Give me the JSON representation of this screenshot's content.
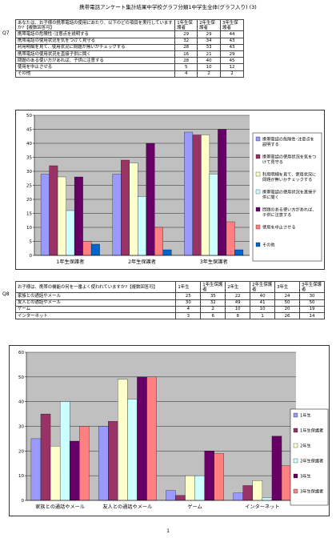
{
  "page": {
    "title": "携帯電話アンケート集計結果中学校グラフ分類1中学生全体(グラフ入り) (3)",
    "page_number": "1"
  },
  "q7": {
    "label": "Q7",
    "question": "あなたは、お子様の携帯電話の使用にあたり、以下のどの項目を実行していますか?【複数回答可】",
    "headers": [
      "1年生保護者",
      "2年生保護者",
      "3年生保護者"
    ],
    "rows": [
      {
        "label": "携帯電話の危険性･注意点を説明する",
        "values": [
          "29",
          "29",
          "44"
        ]
      },
      {
        "label": "携帯電話の使用状況を気をつけて見守る",
        "values": [
          "32",
          "34",
          "43"
        ]
      },
      {
        "label": "利用明細を見て、使用状況に問題が無いかチェックする",
        "values": [
          "28",
          "33",
          "43"
        ]
      },
      {
        "label": "携帯電話の使用状況を直接子供に聞く",
        "values": [
          "16",
          "21",
          "29"
        ]
      },
      {
        "label": "問題のある使い方があれば、子供に注意する",
        "values": [
          "28",
          "40",
          "45"
        ]
      },
      {
        "label": "使用を中止させる",
        "values": [
          "5",
          "10",
          "12"
        ]
      },
      {
        "label": "その他",
        "values": [
          "4",
          "2",
          "2"
        ]
      }
    ]
  },
  "q8": {
    "label": "Q8",
    "question": "お子様は、携帯の機能の何を一番よく使われていますか?【複数回答可】",
    "headers": [
      "1年生",
      "1年生保護者",
      "2年生",
      "2年生保護者",
      "3年生",
      "3年生保護者"
    ],
    "rows": [
      {
        "label": "家族との通話やメール",
        "values": [
          "25",
          "35",
          "22",
          "40",
          "24",
          "30"
        ]
      },
      {
        "label": "友人との通話やメール",
        "values": [
          "30",
          "32",
          "49",
          "41",
          "50",
          "50"
        ]
      },
      {
        "label": "ゲーム",
        "values": [
          "4",
          "2",
          "10",
          "10",
          "20",
          "19"
        ]
      },
      {
        "label": "インターネット",
        "values": [
          "3",
          "6",
          "8",
          "1",
          "26",
          "14"
        ]
      }
    ]
  },
  "colors": [
    "#9999ff",
    "#993366",
    "#ffffcc",
    "#ccffff",
    "#660066",
    "#ff8080",
    "#0066cc"
  ],
  "chart_data": [
    {
      "type": "bar",
      "categories": [
        "1年生保護者",
        "2年生保護者",
        "3年生保護者"
      ],
      "ylim": [
        0,
        50
      ],
      "yticks": [
        0,
        5,
        10,
        15,
        20,
        25,
        30,
        35,
        40,
        45,
        50
      ],
      "grid": true,
      "legend_position": "right",
      "series": [
        {
          "name": "携帯電話の危険性･注意点を説明する",
          "values": [
            29,
            29,
            44
          ]
        },
        {
          "name": "携帯電話の使用状況を気をつけて見守る",
          "values": [
            32,
            34,
            43
          ]
        },
        {
          "name": "利用明細を見て、使用状況に問題が無いかチェックする",
          "values": [
            28,
            33,
            43
          ]
        },
        {
          "name": "携帯電話の使用状況を直接子供に聞く",
          "values": [
            16,
            21,
            29
          ]
        },
        {
          "name": "問題のある使い方があれば、子供に注意する",
          "values": [
            28,
            40,
            45
          ]
        },
        {
          "name": "使用を中止させる",
          "values": [
            5,
            10,
            12
          ]
        },
        {
          "name": "その他",
          "values": [
            4,
            2,
            2
          ]
        }
      ]
    },
    {
      "type": "bar",
      "categories": [
        "家族との通話やメール",
        "友人との通話やメール",
        "ゲーム",
        "インターネット"
      ],
      "ylim": [
        0,
        60
      ],
      "yticks": [
        0,
        10,
        20,
        30,
        40,
        50,
        60
      ],
      "grid": true,
      "legend_position": "right",
      "series": [
        {
          "name": "1年生",
          "values": [
            25,
            30,
            4,
            3
          ]
        },
        {
          "name": "1年生保護者",
          "values": [
            35,
            32,
            2,
            6
          ]
        },
        {
          "name": "2年生",
          "values": [
            22,
            49,
            10,
            8
          ]
        },
        {
          "name": "2年生保護者",
          "values": [
            40,
            41,
            10,
            1
          ]
        },
        {
          "name": "3年生",
          "values": [
            24,
            50,
            20,
            26
          ]
        },
        {
          "name": "3年生保護者",
          "values": [
            30,
            50,
            19,
            14
          ]
        }
      ]
    }
  ]
}
